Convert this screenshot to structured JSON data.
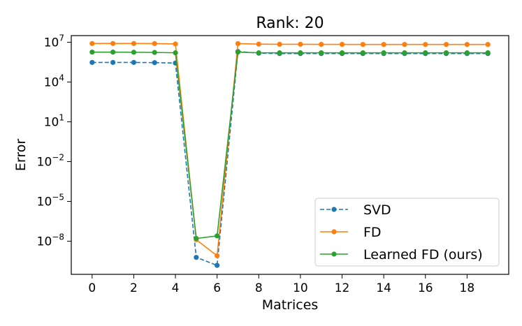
{
  "chart_data": {
    "type": "line",
    "title": "Rank: 20",
    "xlabel": "Matrices",
    "ylabel": "Error",
    "xlim": [
      -1,
      20
    ],
    "ylim_log10": [
      -10.5,
      7.5
    ],
    "y_scale": "log",
    "grid": false,
    "legend_position": "lower-right",
    "x_ticks": [
      0,
      2,
      4,
      6,
      8,
      10,
      12,
      14,
      16,
      18
    ],
    "y_ticks": [
      {
        "exp": 4,
        "base": "10",
        "sup": "4"
      },
      {
        "exp": 7,
        "base": "10",
        "sup": "7"
      },
      {
        "exp": 1,
        "base": "10",
        "sup": "1"
      },
      {
        "exp": -2,
        "base": "10",
        "sup": "−2"
      },
      {
        "exp": -5,
        "base": "10",
        "sup": "−5"
      },
      {
        "exp": -8,
        "base": "10",
        "sup": "−8"
      }
    ],
    "x": [
      0,
      1,
      2,
      3,
      4,
      5,
      6,
      7,
      8,
      9,
      10,
      11,
      12,
      13,
      14,
      15,
      16,
      17,
      18,
      19
    ],
    "series": [
      {
        "name": "SVD",
        "color": "#1f77b4",
        "dashed": true,
        "values": [
          300000,
          300000,
          300000,
          290000,
          270000,
          6e-10,
          1.5e-10,
          2000000,
          1500000,
          1400000,
          1400000,
          1400000,
          1400000,
          1400000,
          1400000,
          1400000,
          1400000,
          1400000,
          1400000,
          1400000
        ]
      },
      {
        "name": "FD",
        "color": "#ff7f0e",
        "dashed": false,
        "values": [
          8000000,
          8000000,
          8000000,
          7900000,
          7400000,
          1.3e-08,
          8e-10,
          7900000,
          7200000,
          7000000,
          7000000,
          6900000,
          6900000,
          6800000,
          6800000,
          6800000,
          6800000,
          6800000,
          6800000,
          6800000
        ]
      },
      {
        "name": "Learned FD (ours)",
        "color": "#2ca02c",
        "dashed": false,
        "values": [
          1800000,
          1800000,
          1750000,
          1700000,
          1600000,
          1.6e-08,
          2.5e-08,
          1800000,
          1600000,
          1600000,
          1600000,
          1600000,
          1600000,
          1600000,
          1600000,
          1600000,
          1600000,
          1600000,
          1600000,
          1600000
        ]
      }
    ]
  }
}
